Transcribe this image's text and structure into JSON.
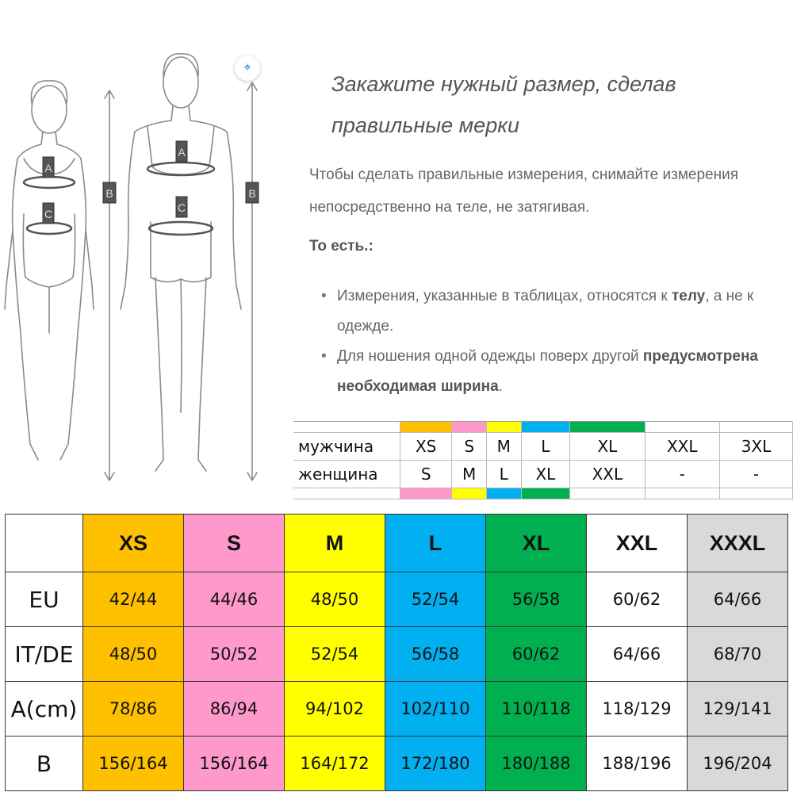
{
  "heading": "Закажите нужный размер, сделав правильные мерки",
  "intro": "Чтобы сделать правильные измерения, снимайте измерения непосредственно на теле, не затягивая.",
  "subheading": "То есть.:",
  "bullets": {
    "b1_pre": "Измерения, указанные в таблицах, относятся к ",
    "b1_bold": "телу",
    "b1_post": ", а не к одежде.",
    "b2_pre": "Для ношения одной одежды поверх другой ",
    "b2_bold": "предусмотрена необходимая ширина",
    "b2_post": "."
  },
  "figure_labels": {
    "a": "A",
    "b": "B",
    "c": "C"
  },
  "icons": {
    "scan": "scan-icon"
  },
  "colors": {
    "XS": "#ffc000",
    "S": "#ff99cc",
    "M": "#ffff00",
    "L": "#00b0f0",
    "XL": "#00b050",
    "XXL": "#ffffff",
    "XXXL": "#d9d9d9"
  },
  "conversion": {
    "men_label": "мужчина",
    "women_label": "женщина",
    "men": [
      "XS",
      "S",
      "M",
      "L",
      "XL",
      "XXL",
      "3XL"
    ],
    "women": [
      "S",
      "M",
      "L",
      "XL",
      "XXL",
      "-",
      "-"
    ],
    "men_colors": [
      "#ffc000",
      "#ff99cc",
      "#ffff00",
      "#00b0f0",
      "#00b050",
      "#ffffff",
      "#ffffff"
    ],
    "women_colors": [
      "#ff99cc",
      "#ffff00",
      "#00b0f0",
      "#00b050",
      "#ffffff",
      "#ffffff",
      "#ffffff"
    ]
  },
  "size_table": {
    "sizes": [
      "XS",
      "S",
      "M",
      "L",
      "XL",
      "XXL",
      "XXXL"
    ],
    "rows": [
      {
        "label": "EU",
        "values": [
          "42/44",
          "44/46",
          "48/50",
          "52/54",
          "56/58",
          "60/62",
          "64/66"
        ]
      },
      {
        "label": "IT/DE",
        "values": [
          "48/50",
          "50/52",
          "52/54",
          "56/58",
          "60/62",
          "64/66",
          "68/70"
        ]
      },
      {
        "label": "A(cm)",
        "values": [
          "78/86",
          "86/94",
          "94/102",
          "102/110",
          "110/118",
          "118/129",
          "129/141"
        ]
      },
      {
        "label": "B",
        "values": [
          "156/164",
          "156/164",
          "164/172",
          "172/180",
          "180/188",
          "188/196",
          "196/204"
        ]
      }
    ]
  }
}
